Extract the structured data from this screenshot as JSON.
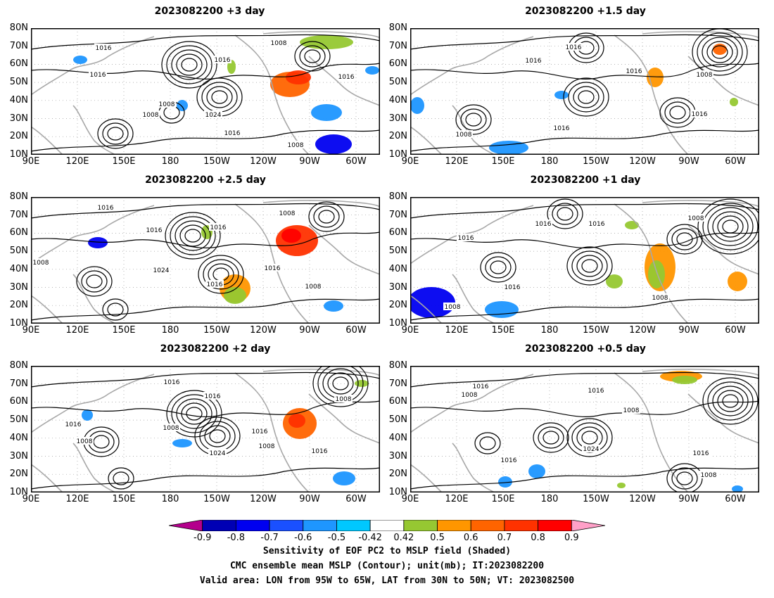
{
  "panels": [
    {
      "title": "2023082200  +3 day"
    },
    {
      "title": "2023082200  +1.5 day"
    },
    {
      "title": "2023082200  +2.5 day"
    },
    {
      "title": "2023082200  +1 day"
    },
    {
      "title": "2023082200  +2 day"
    },
    {
      "title": "2023082200  +0.5 day"
    }
  ],
  "axes": {
    "lat_labels": [
      "80N",
      "70N",
      "60N",
      "50N",
      "40N",
      "30N",
      "20N",
      "10N"
    ],
    "lon_labels": [
      "90E",
      "120E",
      "150E",
      "180",
      "150W",
      "120W",
      "90W",
      "60W"
    ]
  },
  "contour_labels": {
    "p0": [
      "1016",
      "1016",
      "1016",
      "1008",
      "1008",
      "1016",
      "1008",
      "1024",
      "1016",
      "1008"
    ],
    "p1": [
      "1016",
      "1016",
      "1016",
      "1008",
      "1016",
      "1016",
      "1008"
    ],
    "p2": [
      "1016",
      "1016",
      "1016",
      "1008",
      "1008",
      "1024",
      "1016",
      "1016",
      "1008"
    ],
    "p3": [
      "1016",
      "1016",
      "1008",
      "1016",
      "1016",
      "1008",
      "1008"
    ],
    "p4": [
      "1016",
      "1016",
      "1016",
      "1008",
      "1008",
      "1016",
      "1024",
      "1008",
      "1016",
      "1008"
    ],
    "p5": [
      "1016",
      "1008",
      "1016",
      "1008",
      "1016",
      "1024",
      "1016",
      "1008"
    ]
  },
  "colorbar": {
    "labels": [
      "-0.9",
      "-0.8",
      "-0.7",
      "-0.6",
      "-0.5",
      "-0.42",
      "0.42",
      "0.5",
      "0.6",
      "0.7",
      "0.8",
      "0.9"
    ],
    "colors": [
      "#0000b4",
      "#0000f0",
      "#1a50ff",
      "#1e96ff",
      "#00c8ff",
      "#ffffff",
      "#96c832",
      "#ff9600",
      "#ff6400",
      "#ff3200",
      "#ff0000"
    ],
    "low_end_color": "#b4008c",
    "high_end_color": "#ffa0c8"
  },
  "captions": {
    "line1": "Sensitivity of EOF PC2 to MSLP field (Shaded)",
    "line2": "CMC ensemble mean MSLP (Contour); unit(mb); IT:2023082200",
    "line3": "Valid area: LON from 95W to 65W, LAT from 30N to 50N; VT: 2023082500"
  }
}
